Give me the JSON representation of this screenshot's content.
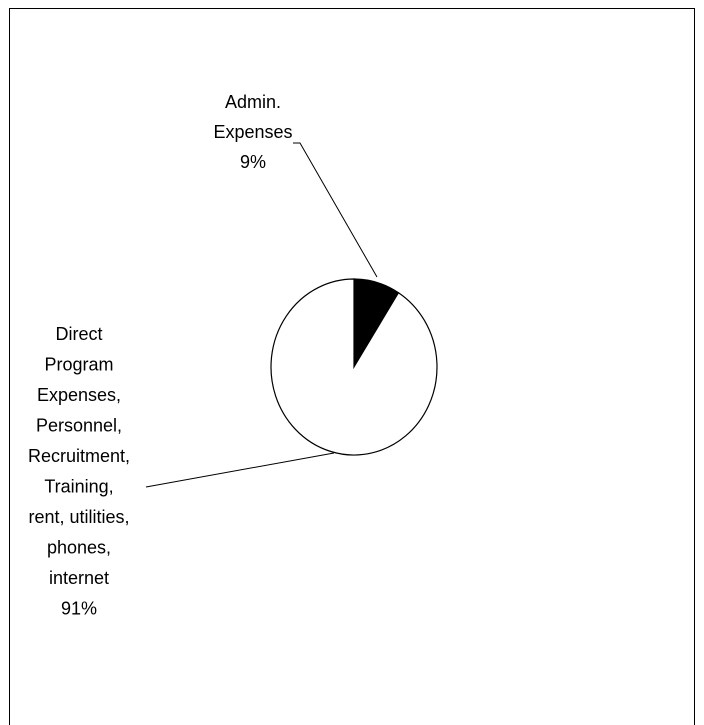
{
  "chart_data": {
    "type": "pie",
    "title": "",
    "slices": [
      {
        "label_lines": [
          "Admin.",
          "Expenses",
          "9%"
        ],
        "value": 9,
        "color": "#000000"
      },
      {
        "label_lines": [
          "Direct",
          "Program",
          "Expenses,",
          "Personnel,",
          "Recruitment,",
          "Training,",
          "rent, utilities,",
          "phones,",
          "internet",
          "91%"
        ],
        "value": 91,
        "color": "#ffffff"
      }
    ],
    "legend": "none"
  }
}
